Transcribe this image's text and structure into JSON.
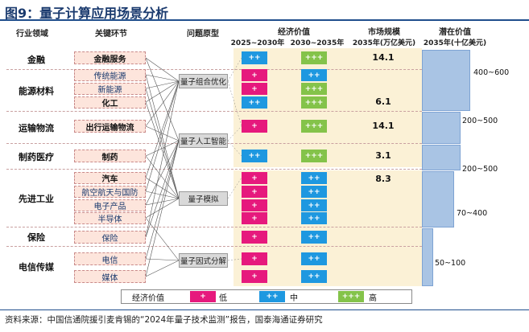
{
  "title": "图9：量子计算应用场景分析",
  "headers": {
    "industry": "行业领域",
    "link": "关键环节",
    "problem": "问题原型",
    "econ": "经济价值",
    "econ_2025": "2025~2030年",
    "econ_2030": "2030~2035年",
    "market": "市场规模",
    "market_sub": "2035年(万亿美元)",
    "potential": "潜在价值",
    "potential_sub": "2035年(十亿美元)"
  },
  "industries": [
    "金融",
    "能源材料",
    "运输物流",
    "制药医疗",
    "先进工业",
    "保险",
    "电信传媒"
  ],
  "links": [
    "金融服务",
    "传统能源",
    "新能源",
    "化工",
    "出行运输物流",
    "制药",
    "汽车",
    "航空航天与国防",
    "电子产品",
    "半导体",
    "保险",
    "电信",
    "媒体"
  ],
  "problems": [
    "量子组合优化",
    "量子人工智能",
    "量子模拟",
    "量子因式分解"
  ],
  "econ_rows": [
    {
      "a": "++",
      "b": "+++"
    },
    {
      "a": "+",
      "b": "++"
    },
    {
      "a": "+",
      "b": "+++"
    },
    {
      "a": "++",
      "b": "+++"
    },
    {
      "a": "+",
      "b": "+++"
    },
    {
      "a": "++",
      "b": "+++"
    },
    {
      "a": "+",
      "b": "++"
    },
    {
      "a": "+",
      "b": "++"
    },
    {
      "a": "+",
      "b": "++"
    },
    {
      "a": "+",
      "b": "++"
    },
    {
      "a": "+",
      "b": "++"
    },
    {
      "a": "+",
      "b": "++"
    },
    {
      "a": "+",
      "b": "++"
    }
  ],
  "market_values": [
    "14.1",
    "6.1",
    "14.1",
    "3.1",
    "8.3"
  ],
  "potential_values": [
    "400~600",
    "200~500",
    "200~500",
    "70~400",
    "50~100"
  ],
  "legend": {
    "label": "经济价值",
    "items": [
      {
        "mark": "+",
        "text": "低",
        "color": "#e6197d"
      },
      {
        "mark": "++",
        "text": "中",
        "color": "#1e98e0"
      },
      {
        "mark": "+++",
        "text": "高",
        "color": "#84c34a"
      }
    ]
  },
  "source": "资料来源：中国信通院援引麦肯锡的“2024年量子技术监测”报告，国泰海通证券研究",
  "colors": {
    "low": "#e6197d",
    "mid": "#1e98e0",
    "high": "#84c34a",
    "title": "#1a3a6e"
  }
}
